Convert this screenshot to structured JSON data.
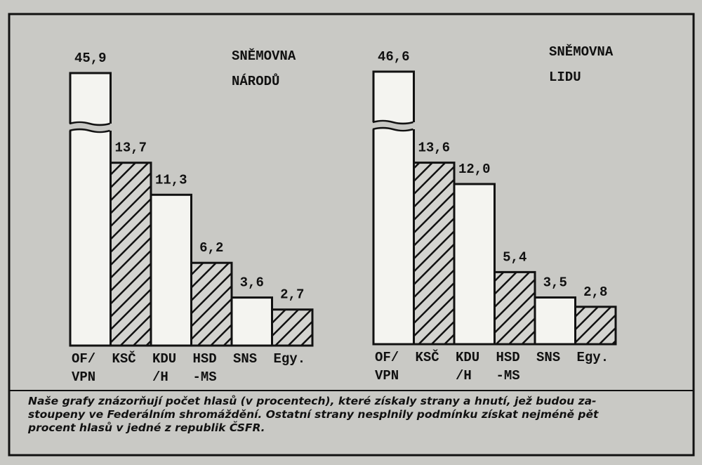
{
  "chart_data": [
    {
      "type": "bar",
      "title": "SNĚMOVNA\nNÁRODŮ",
      "categories": [
        "OF/\nVPN",
        "KSČ",
        "KDU\n/H",
        "HSD\n-MS",
        "SNS",
        "Egy."
      ],
      "values": [
        45.9,
        13.7,
        11.3,
        6.2,
        3.6,
        2.7
      ],
      "value_labels": [
        "45,9",
        "13,7",
        "11,3",
        "6,2",
        "3,6",
        "2,7"
      ],
      "fills": [
        "plain",
        "hatched",
        "plain",
        "hatched",
        "plain",
        "hatched"
      ]
    },
    {
      "type": "bar",
      "title": "SNĚMOVNA\nLIDU",
      "categories": [
        "OF/\nVPN",
        "KSČ",
        "KDU\n/H",
        "HSD\n-MS",
        "SNS",
        "Egy."
      ],
      "values": [
        46.6,
        13.6,
        12.0,
        5.4,
        3.5,
        2.8
      ],
      "value_labels": [
        "46,6",
        "13,6",
        "12,0",
        "5,4",
        "3,5",
        "2,8"
      ],
      "fills": [
        "plain",
        "hatched",
        "plain",
        "hatched",
        "plain",
        "hatched"
      ]
    }
  ],
  "caption": "Naše grafy znázorňují počet hlasů (v procentech), které získaly strany a hnutí, jež budou za-\nstoupeny ve Federálním shromáždění. Ostatní strany nesplnily podmínku získat nejméně pět\nprocent hlasů v jedné z republik ČSFR."
}
